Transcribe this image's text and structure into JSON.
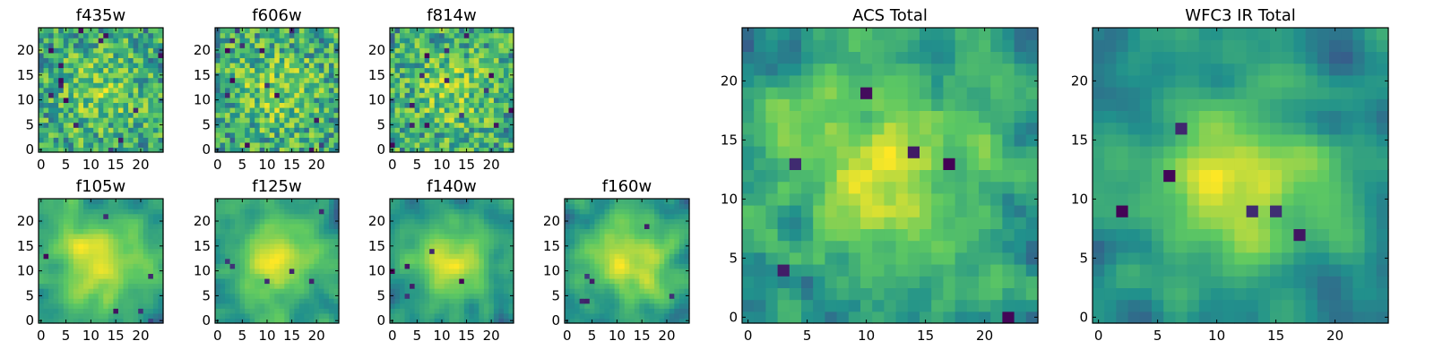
{
  "chart_data": [
    {
      "type": "heatmap",
      "title": "f435w",
      "xticks": [
        "0",
        "5",
        "10",
        "15",
        "20"
      ],
      "yticks": [
        "0",
        "5",
        "10",
        "15",
        "20"
      ],
      "xlim": [
        -0.5,
        24.5
      ],
      "ylim": [
        -0.5,
        24.5
      ],
      "grid_size": 25,
      "colormap": "viridis",
      "texture": "noisy",
      "seed": 11
    },
    {
      "type": "heatmap",
      "title": "f606w",
      "xticks": [
        "0",
        "5",
        "10",
        "15",
        "20"
      ],
      "yticks": [
        "0",
        "5",
        "10",
        "15",
        "20"
      ],
      "xlim": [
        -0.5,
        24.5
      ],
      "ylim": [
        -0.5,
        24.5
      ],
      "grid_size": 25,
      "colormap": "viridis",
      "texture": "noisy",
      "seed": 23
    },
    {
      "type": "heatmap",
      "title": "f814w",
      "xticks": [
        "0",
        "5",
        "10",
        "15",
        "20"
      ],
      "yticks": [
        "0",
        "5",
        "10",
        "15",
        "20"
      ],
      "xlim": [
        -0.5,
        24.5
      ],
      "ylim": [
        -0.5,
        24.5
      ],
      "grid_size": 25,
      "colormap": "viridis",
      "texture": "noisy",
      "seed": 37
    },
    {
      "type": "heatmap",
      "title": "f105w",
      "xticks": [
        "0",
        "5",
        "10",
        "15",
        "20"
      ],
      "yticks": [
        "0",
        "5",
        "10",
        "15",
        "20"
      ],
      "xlim": [
        -0.5,
        24.5
      ],
      "ylim": [
        -0.5,
        24.5
      ],
      "grid_size": 25,
      "colormap": "viridis",
      "texture": "smooth",
      "seed": 41
    },
    {
      "type": "heatmap",
      "title": "f125w",
      "xticks": [
        "0",
        "5",
        "10",
        "15",
        "20"
      ],
      "yticks": [
        "0",
        "5",
        "10",
        "15",
        "20"
      ],
      "xlim": [
        -0.5,
        24.5
      ],
      "ylim": [
        -0.5,
        24.5
      ],
      "grid_size": 25,
      "colormap": "viridis",
      "texture": "smooth",
      "seed": 53
    },
    {
      "type": "heatmap",
      "title": "f140w",
      "xticks": [
        "0",
        "5",
        "10",
        "15",
        "20"
      ],
      "yticks": [
        "0",
        "5",
        "10",
        "15",
        "20"
      ],
      "xlim": [
        -0.5,
        24.5
      ],
      "ylim": [
        -0.5,
        24.5
      ],
      "grid_size": 25,
      "colormap": "viridis",
      "texture": "smooth",
      "seed": 67
    },
    {
      "type": "heatmap",
      "title": "f160w",
      "xticks": [
        "0",
        "5",
        "10",
        "15",
        "20"
      ],
      "yticks": [
        "0",
        "5",
        "10",
        "15",
        "20"
      ],
      "xlim": [
        -0.5,
        24.5
      ],
      "ylim": [
        -0.5,
        24.5
      ],
      "grid_size": 25,
      "colormap": "viridis",
      "texture": "smooth",
      "seed": 79
    },
    {
      "type": "heatmap",
      "title": "ACS Total",
      "xticks": [
        "0",
        "5",
        "10",
        "15",
        "20"
      ],
      "yticks": [
        "0",
        "5",
        "10",
        "15",
        "20"
      ],
      "xlim": [
        -0.5,
        24.5
      ],
      "ylim": [
        -0.5,
        24.5
      ],
      "grid_size": 25,
      "colormap": "viridis",
      "texture": "medium",
      "seed": 83
    },
    {
      "type": "heatmap",
      "title": "WFC3 IR Total",
      "xticks": [
        "0",
        "5",
        "10",
        "15",
        "20"
      ],
      "yticks": [
        "0",
        "5",
        "10",
        "15",
        "20"
      ],
      "xlim": [
        -0.5,
        24.5
      ],
      "ylim": [
        -0.5,
        24.5
      ],
      "grid_size": 25,
      "colormap": "viridis",
      "texture": "smooth",
      "seed": 97
    }
  ],
  "colors": {
    "viridis_stops": [
      "#440154",
      "#3b528b",
      "#21918c",
      "#5ec962",
      "#fde725"
    ],
    "axes": "#000000",
    "background": "#ffffff"
  }
}
